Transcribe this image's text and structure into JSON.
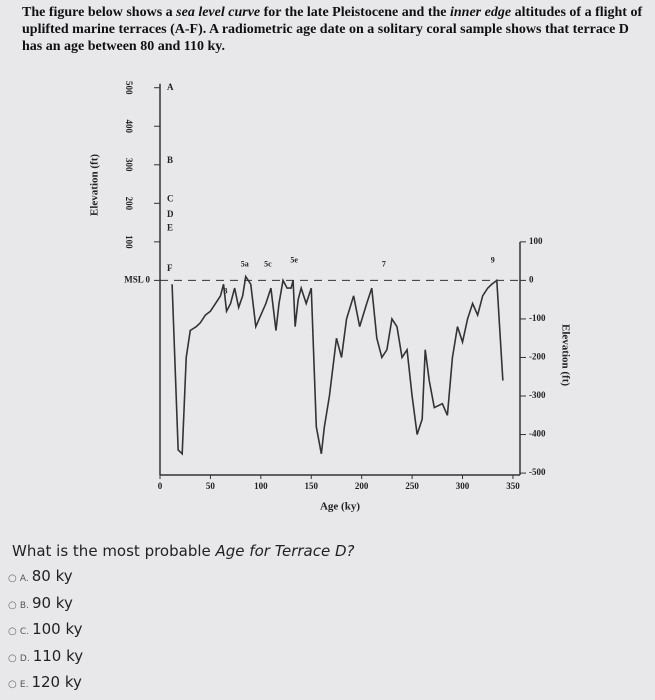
{
  "header": {
    "parts": [
      "The figure below shows a ",
      "sea level curve",
      " for the late Pleistocene and the ",
      "inner edge",
      " altitudes of a flight of uplifted marine terraces (A-F).  A radiometric age date on a solitary coral sample shows that terrace D has an age between 80 and 110 ky."
    ]
  },
  "chart_data": {
    "type": "line",
    "x_label": "Age (ky)",
    "y_label": "Elevation (ft)",
    "y2_label": "Elevation (ft)",
    "x": [
      12,
      18,
      22,
      26,
      30,
      36,
      40,
      45,
      50,
      55,
      60,
      63,
      66,
      70,
      74,
      78,
      82,
      85,
      90,
      95,
      100,
      105,
      110,
      115,
      118,
      122,
      126,
      130,
      132,
      134,
      137,
      140,
      145,
      150,
      155,
      160,
      163,
      168,
      175,
      180,
      185,
      192,
      198,
      205,
      210,
      215,
      220,
      225,
      230,
      235,
      240,
      245,
      250,
      255,
      260,
      263,
      267,
      272,
      280,
      285,
      290,
      295,
      300,
      305,
      310,
      315,
      320,
      325,
      329,
      334,
      340
    ],
    "values": [
      -10,
      -440,
      -450,
      -200,
      -130,
      -120,
      -110,
      -90,
      -80,
      -60,
      -40,
      -10,
      -80,
      -60,
      -20,
      -70,
      -40,
      10,
      -10,
      -120,
      -90,
      -60,
      -20,
      -130,
      -60,
      0,
      -20,
      -20,
      0,
      -120,
      -50,
      -20,
      -60,
      -20,
      -380,
      -450,
      -380,
      -300,
      -150,
      -200,
      -100,
      -40,
      -120,
      -60,
      -20,
      -150,
      -200,
      -180,
      -100,
      -120,
      -200,
      -180,
      -300,
      -400,
      -360,
      -180,
      -260,
      -330,
      -320,
      -350,
      -200,
      -120,
      -160,
      -100,
      -60,
      -90,
      -40,
      -20,
      -10,
      0,
      -260
    ],
    "color": "#333333",
    "xlim": [
      0,
      357
    ],
    "xticks": [
      0,
      50,
      100,
      150,
      200,
      250,
      300,
      350
    ],
    "ylim": [
      -505,
      520
    ],
    "yticks": [
      {
        "value": 0,
        "label": "MSL  0"
      },
      100,
      200,
      300,
      400,
      500
    ],
    "y2lim": [
      -505,
      520
    ],
    "y2ticks": [
      100,
      0,
      -100,
      -200,
      -300,
      -400,
      -500
    ],
    "terraces": [
      {
        "label": "A",
        "elevation": 500
      },
      {
        "label": "B",
        "elevation": 310
      },
      {
        "label": "C",
        "elevation": 210
      },
      {
        "label": "D",
        "elevation": 170
      },
      {
        "label": "E",
        "elevation": 135
      },
      {
        "label": "F",
        "elevation": 30
      }
    ],
    "annotations": [
      {
        "text": "3",
        "x": 65,
        "y": -50
      },
      {
        "text": "5a",
        "x": 84,
        "y": 20
      },
      {
        "text": "5c",
        "x": 107,
        "y": 20
      },
      {
        "text": "5e",
        "x": 133,
        "y": 30
      },
      {
        "text": "7",
        "x": 222,
        "y": 20
      },
      {
        "text": "9",
        "x": 330,
        "y": 30
      }
    ]
  },
  "question": {
    "parts": [
      "What is the most probable ",
      "Age for Terrace D?"
    ],
    "options": [
      {
        "letter": "A.",
        "text": "80 ky"
      },
      {
        "letter": "B.",
        "text": "90 ky"
      },
      {
        "letter": "C.",
        "text": "100 ky"
      },
      {
        "letter": "D.",
        "text": "110 ky"
      },
      {
        "letter": "E.",
        "text": "120 ky"
      }
    ]
  }
}
